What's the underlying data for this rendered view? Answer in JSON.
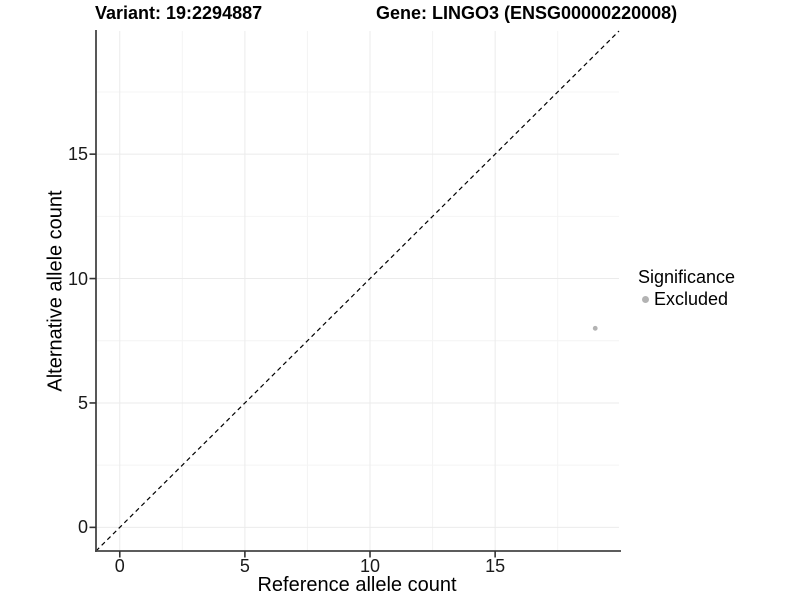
{
  "chart_data": {
    "type": "scatter",
    "titles": {
      "left": "Variant: 19:2294887",
      "right": "Gene: LINGO3 (ENSG00000220008)"
    },
    "xlabel": "Reference allele count",
    "ylabel": "Alternative allele count",
    "xlim": [
      -0.95,
      19.95
    ],
    "ylim": [
      -0.95,
      19.95
    ],
    "x_ticks": [
      0,
      5,
      10,
      15
    ],
    "y_ticks": [
      0,
      5,
      10,
      15
    ],
    "x_minor_ticks": [
      2.5,
      7.5,
      12.5,
      17.5
    ],
    "y_minor_ticks": [
      2.5,
      7.5,
      12.5,
      17.5
    ],
    "grid": "major and minor gridlines, white background",
    "legend": {
      "title": "Significance",
      "position": "right",
      "items": [
        {
          "label": "Excluded",
          "color": "#b3b3b3"
        }
      ]
    },
    "series": [
      {
        "name": "Excluded",
        "color": "#b3b3b3",
        "point_radius": 2.4,
        "points": [
          [
            19,
            8
          ]
        ]
      }
    ],
    "reference_line": {
      "kind": "identity y=x",
      "style": "dashed",
      "color": "#000000"
    },
    "colors": {
      "axis_line": "#454545",
      "tick_mark": "#333333",
      "grid_major": "#ebebeb",
      "grid_minor": "#f4f4f4"
    }
  }
}
